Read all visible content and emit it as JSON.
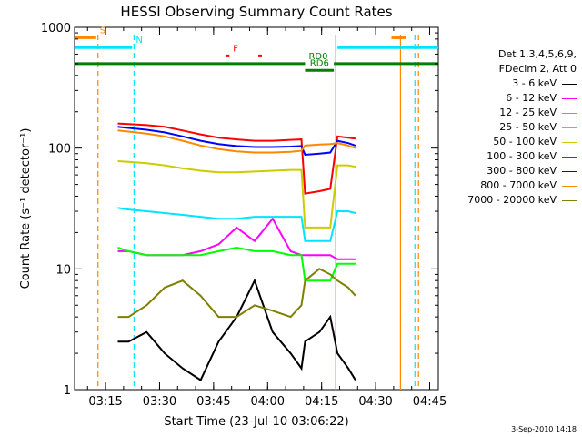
{
  "chart_data": {
    "type": "line",
    "title": "HESSI Observing Summary Count Rates",
    "xlabel": "Start Time (23-Jul-10 03:06:22)",
    "ylabel": "Count Rate (s⁻¹ detector⁻¹)",
    "y_scale": "log",
    "ylim": [
      1,
      1000
    ],
    "xlim_minutes_after_start": [
      0,
      101
    ],
    "x_tick_labels": [
      "03:15",
      "03:30",
      "03:45",
      "04:00",
      "04:15",
      "04:30",
      "04:45"
    ],
    "x_tick_minutes": [
      8.6,
      23.6,
      38.6,
      53.6,
      68.6,
      83.6,
      98.6
    ],
    "y_tick_labels": [
      "1",
      "10",
      "100",
      "1000"
    ],
    "y_ticks": [
      1,
      10,
      100,
      1000
    ],
    "legend_position": "right",
    "legend_header": [
      "Det 1,3,4,5,6,9,",
      "FDecim 2, Att 0"
    ],
    "footer_date": "3-Sep-2010 14:18",
    "flags": [
      {
        "label": "S",
        "color": "#ff8800",
        "y_value": 820,
        "segments": [
          [
            0,
            6
          ],
          [
            88,
            92
          ]
        ]
      },
      {
        "label": "N",
        "color": "#00e5ff",
        "y_value": 680,
        "segments": [
          [
            0,
            16
          ],
          [
            73,
            101
          ]
        ]
      },
      {
        "label": "F",
        "color": "#ff0000",
        "y_value": 580,
        "segments": [
          [
            42,
            43
          ],
          [
            51,
            52
          ]
        ]
      },
      {
        "label": "RD0",
        "color": "#008000",
        "y_value": 500,
        "segments": [
          [
            0,
            64
          ],
          [
            72,
            101
          ]
        ]
      },
      {
        "label": "RD6",
        "color": "#008000",
        "y_value": 440,
        "segments": [
          [
            64,
            72
          ]
        ]
      }
    ],
    "vlines": [
      {
        "color": "#ff8800",
        "minute": 6.5,
        "dashed": true
      },
      {
        "color": "#00e5ff",
        "minute": 16.5,
        "dashed": true
      },
      {
        "color": "#00e5ff",
        "minute": 72.5,
        "dashed": false
      },
      {
        "color": "#ff8800",
        "minute": 90.5,
        "dashed": false
      },
      {
        "color": "#00e5ff",
        "minute": 94.5,
        "dashed": true
      },
      {
        "color": "#ff8800",
        "minute": 95.5,
        "dashed": true
      }
    ],
    "x_minutes": [
      12,
      15,
      20,
      25,
      30,
      35,
      40,
      45,
      50,
      55,
      60,
      63,
      64,
      68,
      71,
      73,
      76,
      78
    ],
    "series": [
      {
        "name": "3 - 6 keV",
        "color": "#000000",
        "values": [
          2.5,
          2.5,
          3,
          2,
          1.5,
          1.2,
          2.5,
          4,
          8,
          3,
          2,
          1.5,
          2.5,
          3,
          4,
          2,
          1.5,
          1.2
        ]
      },
      {
        "name": "6 - 12 keV",
        "color": "#ff00ff",
        "values": [
          14,
          14,
          13,
          13,
          13,
          14,
          16,
          22,
          17,
          26,
          14,
          13,
          13,
          13,
          13,
          12,
          12,
          12
        ]
      },
      {
        "name": "12 - 25 keV",
        "color": "#00ff00",
        "values": [
          15,
          14,
          13,
          13,
          13,
          13,
          14,
          15,
          14,
          14,
          13,
          13,
          8,
          8,
          8,
          11,
          11,
          11
        ]
      },
      {
        "name": "25 - 50 keV",
        "color": "#00e5ff",
        "values": [
          32,
          31,
          30,
          29,
          28,
          27,
          26,
          26,
          27,
          27,
          27,
          27,
          17,
          17,
          17,
          30,
          30,
          29
        ]
      },
      {
        "name": "50 - 100 keV",
        "color": "#cccc00",
        "values": [
          78,
          77,
          75,
          72,
          68,
          65,
          63,
          63,
          64,
          65,
          66,
          66,
          22,
          22,
          22,
          72,
          72,
          70
        ]
      },
      {
        "name": "100 - 300 keV",
        "color": "#ff0000",
        "values": [
          160,
          158,
          155,
          150,
          140,
          130,
          122,
          118,
          115,
          115,
          117,
          118,
          42,
          44,
          46,
          125,
          122,
          120
        ]
      },
      {
        "name": "300 - 800 keV",
        "color": "#0000ff",
        "values": [
          150,
          147,
          142,
          135,
          125,
          115,
          108,
          104,
          102,
          102,
          103,
          104,
          88,
          90,
          92,
          115,
          110,
          105
        ]
      },
      {
        "name": "800 - 7000 keV",
        "color": "#ff8800",
        "values": [
          140,
          137,
          132,
          125,
          115,
          105,
          98,
          94,
          92,
          92,
          93,
          95,
          105,
          107,
          108,
          110,
          105,
          100
        ]
      },
      {
        "name": "7000 - 20000 keV",
        "color": "#808000",
        "values": [
          4,
          4,
          5,
          7,
          8,
          6,
          4,
          4,
          5,
          4.5,
          4,
          5,
          8,
          10,
          9,
          8,
          7,
          6
        ]
      }
    ]
  }
}
